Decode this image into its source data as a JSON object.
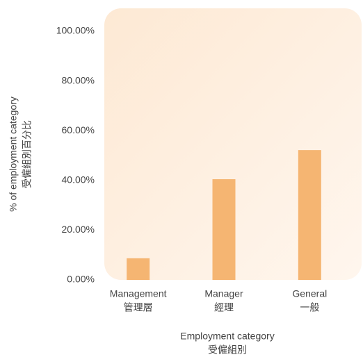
{
  "chart_data": {
    "type": "bar",
    "categories": [
      [
        "Management",
        "管理層"
      ],
      [
        "Manager",
        "經理"
      ],
      [
        "General",
        "一般"
      ]
    ],
    "values": [
      8.7,
      40.5,
      52.2
    ],
    "color": "#f5b572",
    "x_label": [
      "Employment category",
      "受僱組別"
    ],
    "y_label": [
      "% of employment category",
      "受僱組別百分比"
    ],
    "ylim": [
      0,
      100
    ],
    "yticks": [
      {
        "value": 0,
        "label": "0.00%"
      },
      {
        "value": 20,
        "label": "20.00%"
      },
      {
        "value": 40,
        "label": "40.00%"
      },
      {
        "value": 60,
        "label": "60.00%"
      },
      {
        "value": 80,
        "label": "80.00%"
      },
      {
        "value": 100,
        "label": "100.00%"
      }
    ]
  }
}
